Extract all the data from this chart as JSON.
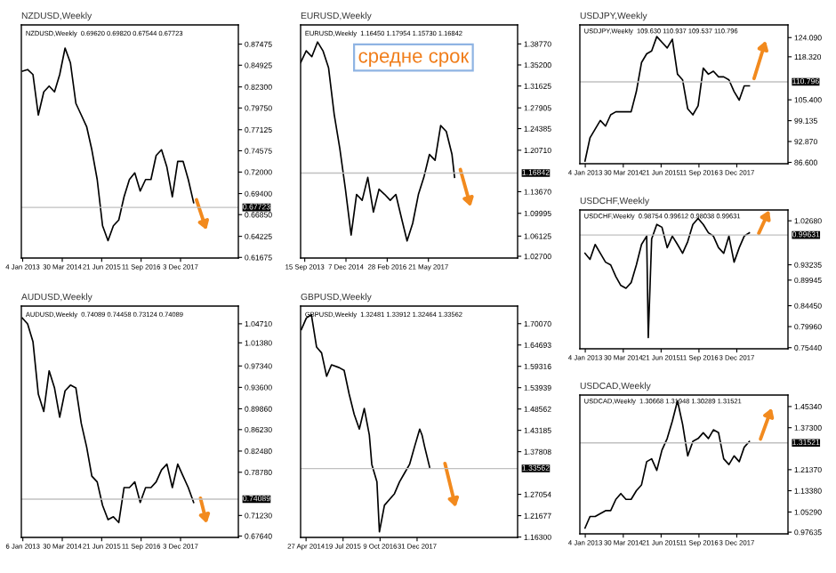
{
  "chart_data": [
    {
      "type": "line",
      "title": "NZDUSD,Weekly",
      "annotations": [
        "NZDUSD,Weekly  0.69620 0.69820 0.67544 0.67723"
      ],
      "color": "#000000",
      "x": [
        "2013-01",
        "2013-03",
        "2013-05",
        "2013-07",
        "2013-09",
        "2013-11",
        "2014-01",
        "2014-03",
        "2014-05",
        "2014-07",
        "2014-09",
        "2014-11",
        "2015-01",
        "2015-03",
        "2015-05",
        "2015-07",
        "2015-09",
        "2015-11",
        "2016-01",
        "2016-03",
        "2016-05",
        "2016-07",
        "2016-09",
        "2016-11",
        "2017-01",
        "2017-03",
        "2017-05",
        "2017-07",
        "2017-09",
        "2017-11",
        "2018-01",
        "2018-03",
        "2018-05"
      ],
      "values": [
        0.842,
        0.844,
        0.838,
        0.789,
        0.817,
        0.824,
        0.817,
        0.838,
        0.87,
        0.852,
        0.803,
        0.789,
        0.775,
        0.747,
        0.711,
        0.655,
        0.637,
        0.655,
        0.662,
        0.69,
        0.711,
        0.719,
        0.697,
        0.711,
        0.711,
        0.74,
        0.747,
        0.726,
        0.69,
        0.733,
        0.733,
        0.711,
        0.683
      ],
      "xlim": [
        "2012-12-20",
        "2019-09-21"
      ],
      "ylim": [
        0.616,
        0.898
      ],
      "xticks": [
        {
          "value": "2013-01-04",
          "label": "4 Jan 2013"
        },
        {
          "value": "2014-03-30",
          "label": "30 Mar 2014"
        },
        {
          "value": "2015-06-21",
          "label": "21 Jun 2015"
        },
        {
          "value": "2016-09-11",
          "label": "11 Sep 2016"
        },
        {
          "value": "2017-12-03",
          "label": "3 Dec 2017"
        }
      ],
      "yticks": [
        {
          "value": 0.61675,
          "label": "0.61675"
        },
        {
          "value": 0.64225,
          "label": "0.64225"
        },
        {
          "value": 0.6685,
          "label": "0.66850"
        },
        {
          "value": 0.694,
          "label": "0.69400"
        },
        {
          "value": 0.72,
          "label": "0.72000"
        },
        {
          "value": 0.74575,
          "label": "0.74575"
        },
        {
          "value": 0.77125,
          "label": "0.77125"
        },
        {
          "value": 0.7975,
          "label": "0.79750"
        },
        {
          "value": 0.823,
          "label": "0.82300"
        },
        {
          "value": 0.84925,
          "label": "0.84925"
        },
        {
          "value": 0.87475,
          "label": "0.87475"
        }
      ],
      "ref_lines": [
        {
          "axis": "y",
          "value": 0.67723,
          "label": "0.67723",
          "color": "#c0c0c0"
        }
      ]
    },
    {
      "type": "line",
      "title": "AUDUSD,Weekly",
      "annotations": [
        "AUDUSD,Weekly  0.74089 0.74458 0.73124 0.74089"
      ],
      "color": "#000000",
      "x": [
        "2013-01",
        "2013-03",
        "2013-05",
        "2013-07",
        "2013-09",
        "2013-11",
        "2014-01",
        "2014-03",
        "2014-05",
        "2014-07",
        "2014-09",
        "2014-11",
        "2015-01",
        "2015-03",
        "2015-05",
        "2015-07",
        "2015-09",
        "2015-11",
        "2016-01",
        "2016-03",
        "2016-05",
        "2016-07",
        "2016-09",
        "2016-11",
        "2017-01",
        "2017-03",
        "2017-05",
        "2017-07",
        "2017-09",
        "2017-11",
        "2018-01",
        "2018-03",
        "2018-05"
      ],
      "values": [
        1.057,
        1.047,
        1.016,
        0.924,
        0.894,
        0.965,
        0.935,
        0.884,
        0.93,
        0.94,
        0.935,
        0.873,
        0.832,
        0.781,
        0.771,
        0.73,
        0.705,
        0.71,
        0.7,
        0.761,
        0.761,
        0.771,
        0.735,
        0.761,
        0.761,
        0.771,
        0.792,
        0.802,
        0.761,
        0.802,
        0.781,
        0.761,
        0.735
      ],
      "xlim": [
        "2012-12-20",
        "2019-09-21"
      ],
      "ylim": [
        0.674,
        1.078
      ],
      "xticks": [
        {
          "value": "2013-01-06",
          "label": "6 Jan 2013"
        },
        {
          "value": "2014-03-30",
          "label": "30 Mar 2014"
        },
        {
          "value": "2015-06-21",
          "label": "21 Jun 2015"
        },
        {
          "value": "2016-09-11",
          "label": "11 Sep 2016"
        },
        {
          "value": "2017-12-03",
          "label": "3 Dec 2017"
        }
      ],
      "yticks": [
        {
          "value": 0.6764,
          "label": "0.67640"
        },
        {
          "value": 0.7123,
          "label": "0.71230"
        },
        {
          "value": 0.7878,
          "label": "0.78780"
        },
        {
          "value": 0.8248,
          "label": "0.82480"
        },
        {
          "value": 0.8623,
          "label": "0.86230"
        },
        {
          "value": 0.8986,
          "label": "0.89860"
        },
        {
          "value": 0.936,
          "label": "0.93600"
        },
        {
          "value": 0.9734,
          "label": "0.97340"
        },
        {
          "value": 1.0138,
          "label": "1.01380"
        },
        {
          "value": 1.0471,
          "label": "1.04710"
        }
      ],
      "ref_lines": [
        {
          "axis": "y",
          "value": 0.74089,
          "label": "0.74089",
          "color": "#c0c0c0"
        }
      ]
    },
    {
      "type": "line",
      "title": "EURUSD,Weekly",
      "annotations": [
        "EURUSD,Weekly  1.16450 1.17954 1.15730 1.16842",
        "средне срок"
      ],
      "color": "#000000",
      "x": [
        "2013-08",
        "2013-10",
        "2013-12",
        "2014-02",
        "2014-04",
        "2014-06",
        "2014-08",
        "2014-10",
        "2014-12",
        "2015-02",
        "2015-04",
        "2015-06",
        "2015-08",
        "2015-10",
        "2015-12",
        "2016-02",
        "2016-04",
        "2016-06",
        "2016-08",
        "2016-10",
        "2016-12",
        "2017-02",
        "2017-04",
        "2017-06",
        "2017-08",
        "2017-10",
        "2017-12",
        "2018-02",
        "2018-03"
      ],
      "values": [
        1.356,
        1.376,
        1.366,
        1.391,
        1.376,
        1.347,
        1.268,
        1.21,
        1.141,
        1.063,
        1.132,
        1.122,
        1.161,
        1.102,
        1.141,
        1.132,
        1.122,
        1.132,
        1.092,
        1.053,
        1.083,
        1.132,
        1.161,
        1.2,
        1.19,
        1.249,
        1.239,
        1.2,
        1.161
      ],
      "xlim": [
        "2013-08-01",
        "2020-01-15"
      ],
      "ylim": [
        1.024,
        1.42
      ],
      "xticks": [
        {
          "value": "2013-09-15",
          "label": "15 Sep 2013"
        },
        {
          "value": "2014-12-07",
          "label": "7 Dec 2014"
        },
        {
          "value": "2016-02-28",
          "label": "28 Feb 2016"
        },
        {
          "value": "2017-05-21",
          "label": "21 May 2017"
        }
      ],
      "yticks": [
        {
          "value": 1.027,
          "label": "1.02700"
        },
        {
          "value": 1.06125,
          "label": "1.06125"
        },
        {
          "value": 1.09995,
          "label": "1.09995"
        },
        {
          "value": 1.1367,
          "label": "1.13670"
        },
        {
          "value": 1.2071,
          "label": "1.20710"
        },
        {
          "value": 1.24385,
          "label": "1.24385"
        },
        {
          "value": 1.27905,
          "label": "1.27905"
        },
        {
          "value": 1.31625,
          "label": "1.31625"
        },
        {
          "value": 1.352,
          "label": "1.35200"
        },
        {
          "value": 1.3877,
          "label": "1.38770"
        }
      ],
      "ref_lines": [
        {
          "axis": "y",
          "value": 1.16842,
          "label": "1.16842",
          "color": "#c0c0c0"
        }
      ]
    },
    {
      "type": "line",
      "title": "GBPUSD,Weekly",
      "annotations": [
        "GBPUSD,Weekly  1.32481 1.33912 1.32464 1.33562"
      ],
      "color": "#000000",
      "x": [
        "2014-03",
        "2014-05",
        "2014-07",
        "2014-09",
        "2014-11",
        "2015-01",
        "2015-03",
        "2015-06",
        "2015-08",
        "2015-10",
        "2015-12",
        "2016-02",
        "2016-04",
        "2016-06",
        "2016-07",
        "2016-09",
        "2016-10",
        "2016-12",
        "2017-02",
        "2017-04",
        "2017-06",
        "2017-08",
        "2017-10",
        "2017-12",
        "2018-02",
        "2018-03",
        "2018-04",
        "2018-06"
      ],
      "values": [
        1.686,
        1.715,
        1.723,
        1.642,
        1.627,
        1.568,
        1.597,
        1.59,
        1.583,
        1.523,
        1.472,
        1.435,
        1.487,
        1.42,
        1.346,
        1.302,
        1.176,
        1.243,
        1.258,
        1.272,
        1.302,
        1.324,
        1.346,
        1.391,
        1.435,
        1.42,
        1.391,
        1.339
      ],
      "xlim": [
        "2014-02-20",
        "2021-05-01"
      ],
      "ylim": [
        1.162,
        1.745
      ],
      "xticks": [
        {
          "value": "2014-04-27",
          "label": "27 Apr 2014"
        },
        {
          "value": "2015-07-19",
          "label": "19 Jul 2015"
        },
        {
          "value": "2016-10-09",
          "label": "9 Oct 2016"
        },
        {
          "value": "2017-12-31",
          "label": "31 Dec 2017"
        }
      ],
      "yticks": [
        {
          "value": 1.163,
          "label": "1.16300"
        },
        {
          "value": 1.21677,
          "label": "1.21677"
        },
        {
          "value": 1.27054,
          "label": "1.27054"
        },
        {
          "value": 1.37808,
          "label": "1.37808"
        },
        {
          "value": 1.43185,
          "label": "1.43185"
        },
        {
          "value": 1.48562,
          "label": "1.48562"
        },
        {
          "value": 1.53939,
          "label": "1.53939"
        },
        {
          "value": 1.59316,
          "label": "1.59316"
        },
        {
          "value": 1.64693,
          "label": "1.64693"
        },
        {
          "value": 1.7007,
          "label": "1.70070"
        }
      ],
      "ref_lines": [
        {
          "axis": "y",
          "value": 1.33562,
          "label": "1.33562",
          "color": "#c0c0c0"
        }
      ]
    },
    {
      "type": "line",
      "title": "USDJPY,Weekly",
      "annotations": [
        "USDJPY,Weekly  109.630 110.937 109.537 110.796"
      ],
      "color": "#000000",
      "x": [
        "2013-01",
        "2013-03",
        "2013-05",
        "2013-07",
        "2013-09",
        "2013-11",
        "2014-01",
        "2014-03",
        "2014-05",
        "2014-07",
        "2014-09",
        "2014-11",
        "2015-01",
        "2015-03",
        "2015-05",
        "2015-07",
        "2015-09",
        "2015-11",
        "2016-01",
        "2016-03",
        "2016-05",
        "2016-07",
        "2016-09",
        "2016-11",
        "2017-01",
        "2017-03",
        "2017-05",
        "2017-07",
        "2017-09",
        "2017-11",
        "2018-01",
        "2018-03",
        "2018-05"
      ],
      "values": [
        87.0,
        94.0,
        96.6,
        99.2,
        97.5,
        100.9,
        101.8,
        101.8,
        101.8,
        101.8,
        107.9,
        116.6,
        119.2,
        120.1,
        124.4,
        122.7,
        121.0,
        123.6,
        113.1,
        111.4,
        102.7,
        100.9,
        103.6,
        114.9,
        113.1,
        114.0,
        112.3,
        112.3,
        111.4,
        107.9,
        105.3,
        109.6,
        109.6
      ],
      "xlim": [
        "2012-11-01",
        "2019-08-01"
      ],
      "ylim": [
        86.2,
        127.9
      ],
      "xticks": [
        {
          "value": "2013-01-04",
          "label": "4 Jan 2013"
        },
        {
          "value": "2014-03-30",
          "label": "30 Mar 2014"
        },
        {
          "value": "2015-06-21",
          "label": "21 Jun 2015"
        },
        {
          "value": "2016-09-11",
          "label": "11 Sep 2016"
        },
        {
          "value": "2017-12-03",
          "label": "3 Dec 2017"
        }
      ],
      "yticks": [
        {
          "value": 86.6,
          "label": "86.600"
        },
        {
          "value": 92.87,
          "label": "92.870"
        },
        {
          "value": 99.135,
          "label": "99.135"
        },
        {
          "value": 105.4,
          "label": "105.400"
        },
        {
          "value": 118.32,
          "label": "118.320"
        },
        {
          "value": 124.09,
          "label": "124.090"
        }
      ],
      "ref_lines": [
        {
          "axis": "y",
          "value": 110.796,
          "label": "110.796",
          "color": "#c0c0c0"
        }
      ]
    },
    {
      "type": "line",
      "title": "USDCHF,Weekly",
      "annotations": [
        "USDCHF,Weekly  0.98754 0.99612 0.98038 0.99631"
      ],
      "color": "#000000",
      "x": [
        "2013-01",
        "2013-03",
        "2013-05",
        "2013-07",
        "2013-09",
        "2013-11",
        "2014-01",
        "2014-03",
        "2014-05",
        "2014-07",
        "2014-09",
        "2014-11",
        "2015-01",
        "2015-01-20",
        "2015-03",
        "2015-05",
        "2015-07",
        "2015-09",
        "2015-11",
        "2016-01",
        "2016-03",
        "2016-05",
        "2016-07",
        "2016-09",
        "2016-11",
        "2017-01",
        "2017-03",
        "2017-05",
        "2017-07",
        "2017-09",
        "2017-11",
        "2018-01",
        "2018-03",
        "2018-05"
      ],
      "values": [
        0.957,
        0.944,
        0.976,
        0.957,
        0.938,
        0.932,
        0.907,
        0.888,
        0.882,
        0.894,
        0.932,
        0.976,
        0.994,
        0.776,
        0.988,
        1.019,
        1.013,
        0.969,
        0.994,
        0.976,
        0.957,
        0.982,
        1.019,
        1.032,
        1.019,
        1.001,
        0.994,
        0.969,
        0.957,
        0.994,
        0.938,
        0.969,
        0.994,
        1.001
      ],
      "xlim": [
        "2012-11-01",
        "2019-08-01"
      ],
      "ylim": [
        0.752,
        1.05
      ],
      "xticks": [
        {
          "value": "2013-01-04",
          "label": "4 Jan 2013"
        },
        {
          "value": "2014-03-30",
          "label": "30 Mar 2014"
        },
        {
          "value": "2015-06-21",
          "label": "21 Jun 2015"
        },
        {
          "value": "2016-09-11",
          "label": "11 Sep 2016"
        },
        {
          "value": "2017-12-03",
          "label": "3 Dec 2017"
        }
      ],
      "yticks": [
        {
          "value": 0.7544,
          "label": "0.75440"
        },
        {
          "value": 0.7996,
          "label": "0.79960"
        },
        {
          "value": 0.8445,
          "label": "0.84450"
        },
        {
          "value": 0.89945,
          "label": "0.89945"
        },
        {
          "value": 0.93235,
          "label": "0.93235"
        },
        {
          "value": 1.0268,
          "label": "1.02680"
        }
      ],
      "ref_lines": [
        {
          "axis": "y",
          "value": 0.99631,
          "label": "0.99631",
          "color": "#c0c0c0"
        }
      ]
    },
    {
      "type": "line",
      "title": "USDCAD,Weekly",
      "annotations": [
        "USDCAD,Weekly  1.30668 1.31948 1.30289 1.31521"
      ],
      "color": "#000000",
      "x": [
        "2013-01",
        "2013-03",
        "2013-05",
        "2013-07",
        "2013-09",
        "2013-11",
        "2014-01",
        "2014-03",
        "2014-05",
        "2014-07",
        "2014-09",
        "2014-11",
        "2015-01",
        "2015-03",
        "2015-05",
        "2015-07",
        "2015-09",
        "2015-11",
        "2016-01",
        "2016-03",
        "2016-05",
        "2016-07",
        "2016-09",
        "2016-11",
        "2017-01",
        "2017-03",
        "2017-05",
        "2017-07",
        "2017-09",
        "2017-11",
        "2018-01",
        "2018-03",
        "2018-05"
      ],
      "values": [
        0.992,
        1.036,
        1.036,
        1.047,
        1.058,
        1.058,
        1.101,
        1.123,
        1.101,
        1.101,
        1.134,
        1.156,
        1.244,
        1.255,
        1.211,
        1.288,
        1.332,
        1.398,
        1.475,
        1.387,
        1.266,
        1.321,
        1.332,
        1.354,
        1.332,
        1.365,
        1.354,
        1.255,
        1.233,
        1.266,
        1.244,
        1.299,
        1.321
      ],
      "xlim": [
        "2012-11-01",
        "2019-08-01"
      ],
      "ylim": [
        0.97,
        1.497
      ],
      "xticks": [
        {
          "value": "2013-01-04",
          "label": "4 Jan 2013"
        },
        {
          "value": "2014-03-30",
          "label": "30 Mar 2014"
        },
        {
          "value": "2015-06-21",
          "label": "21 Jun 2015"
        },
        {
          "value": "2016-09-11",
          "label": "11 Sep 2016"
        },
        {
          "value": "2017-12-03",
          "label": "3 Dec 2017"
        }
      ],
      "yticks": [
        {
          "value": 0.97635,
          "label": "0.97635"
        },
        {
          "value": 1.0529,
          "label": "1.05290"
        },
        {
          "value": 1.1338,
          "label": "1.13380"
        },
        {
          "value": 1.2137,
          "label": "1.21370"
        },
        {
          "value": 1.373,
          "label": "1.37300"
        },
        {
          "value": 1.4534,
          "label": "1.45340"
        }
      ],
      "ref_lines": [
        {
          "axis": "y",
          "value": 1.31521,
          "label": "1.31521",
          "color": "#c0c0c0"
        }
      ]
    }
  ]
}
